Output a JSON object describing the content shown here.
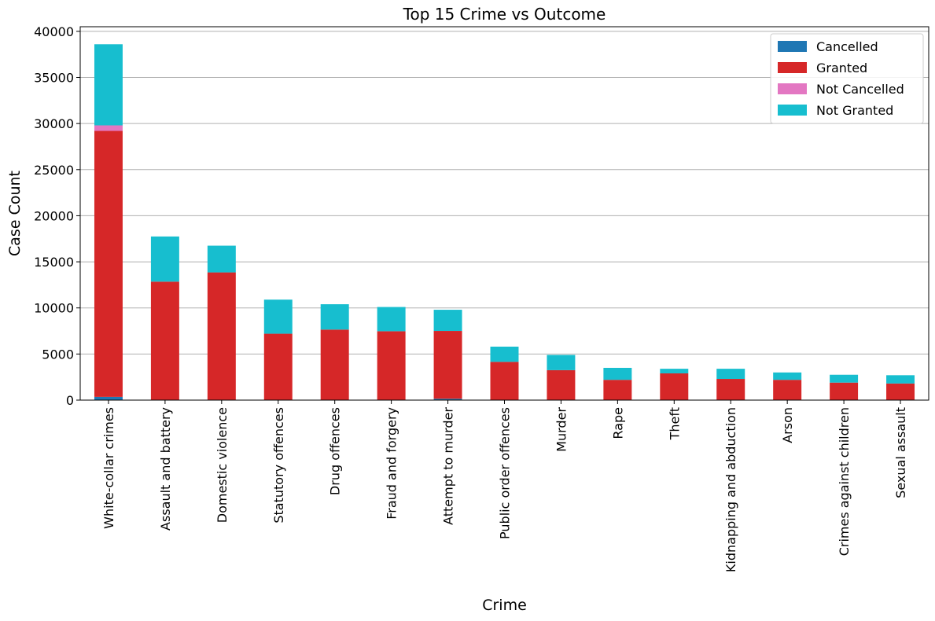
{
  "chart_data": {
    "type": "bar",
    "stacked": true,
    "title": "Top 15 Crime vs Outcome",
    "xlabel": "Crime",
    "ylabel": "Case Count",
    "ylim": [
      0,
      40500
    ],
    "yticks": [
      0,
      5000,
      10000,
      15000,
      20000,
      25000,
      30000,
      35000,
      40000
    ],
    "grid": "y",
    "legend_position": "top-right",
    "categories": [
      "White-collar crimes",
      "Assault and battery",
      "Domestic violence",
      "Statutory offences",
      "Drug offences",
      "Fraud and forgery",
      "Attempt to murder",
      "Public order offences",
      "Murder",
      "Rape",
      "Theft",
      "Kidnapping and abduction",
      "Arson",
      "Crimes against children",
      "Sexual assault"
    ],
    "series": [
      {
        "name": "Cancelled",
        "color": "#1f77b4",
        "values": [
          350,
          30,
          30,
          20,
          20,
          20,
          150,
          20,
          20,
          10,
          10,
          10,
          10,
          10,
          10
        ]
      },
      {
        "name": "Granted",
        "color": "#d62728",
        "values": [
          28850,
          12820,
          13820,
          7180,
          7630,
          7450,
          7350,
          4130,
          3230,
          2190,
          2890,
          2290,
          2190,
          1890,
          1790
        ]
      },
      {
        "name": "Not Cancelled",
        "color": "#e377c2",
        "values": [
          600,
          0,
          0,
          0,
          0,
          0,
          0,
          0,
          0,
          0,
          0,
          0,
          0,
          0,
          0
        ]
      },
      {
        "name": "Not Granted",
        "color": "#17becf",
        "values": [
          8800,
          4900,
          2900,
          3700,
          2750,
          2630,
          2300,
          1650,
          1650,
          1300,
          500,
          1100,
          800,
          850,
          900
        ]
      }
    ]
  }
}
